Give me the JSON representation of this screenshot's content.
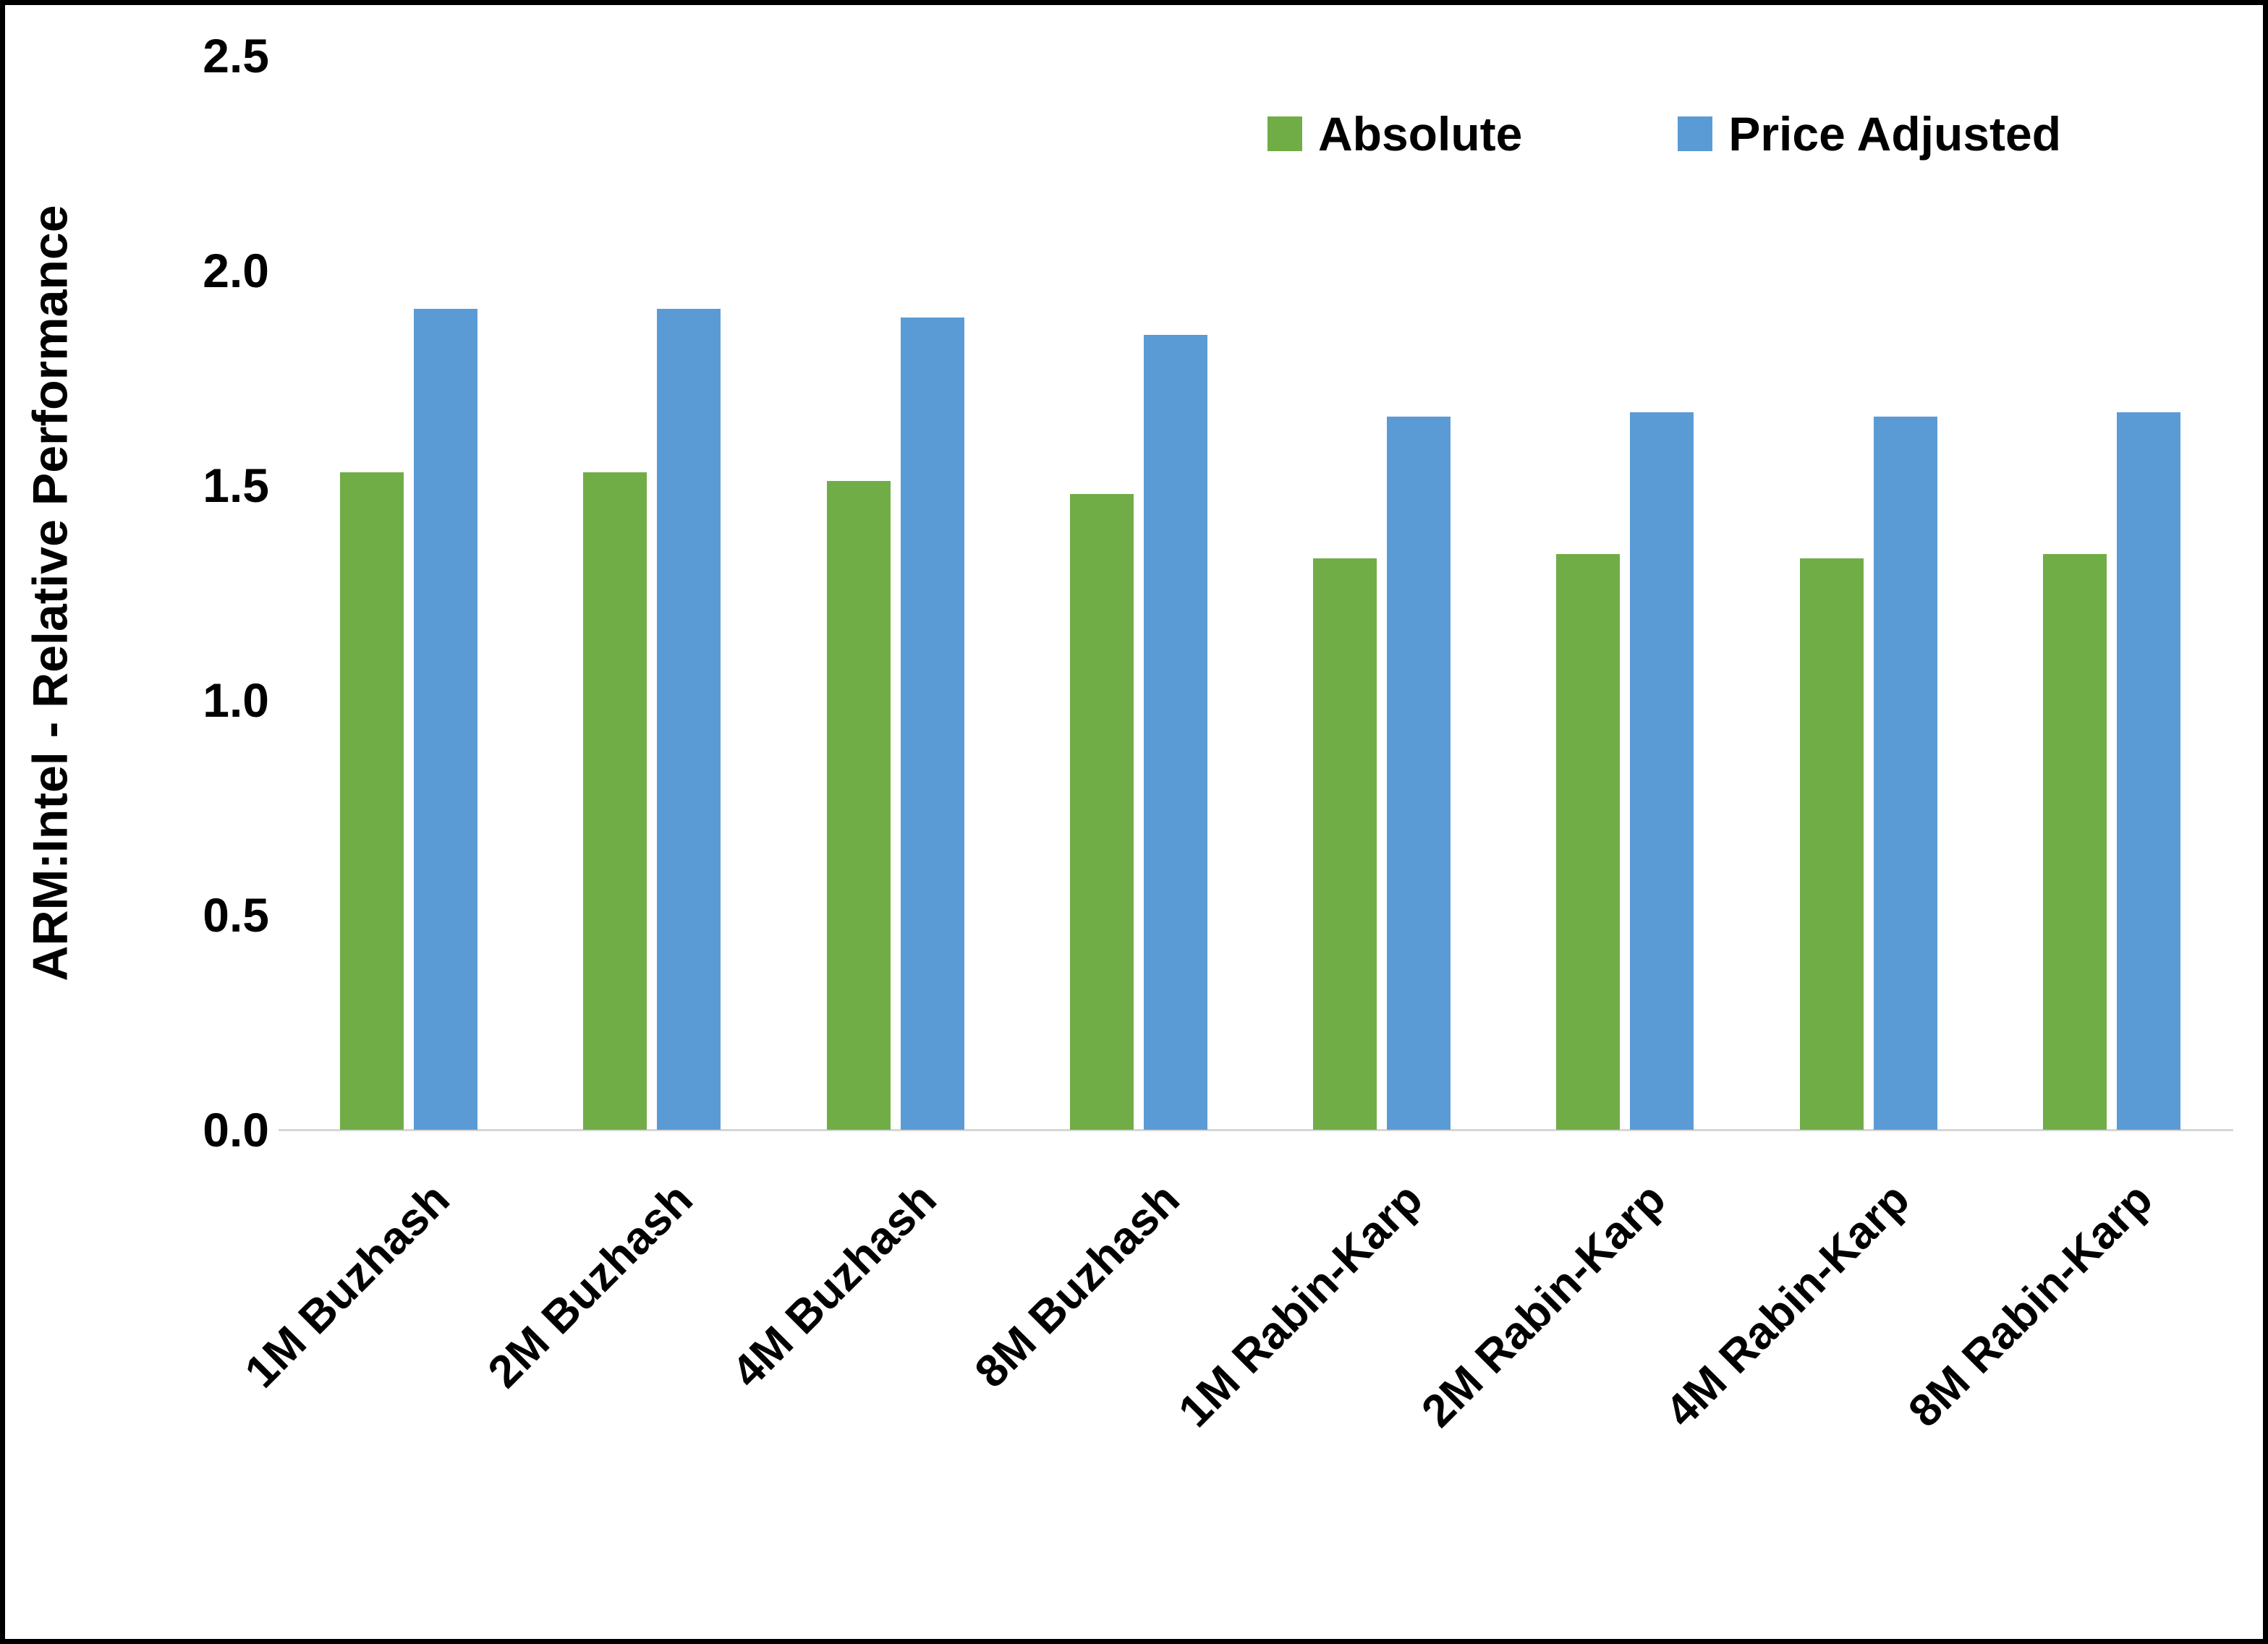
{
  "figure": {
    "background": "#ffffff",
    "border_color": "#000000",
    "axis_line_color": "#d6d6d6",
    "text_color": "#000000"
  },
  "chart_data": {
    "type": "bar",
    "title": "",
    "xlabel": "",
    "ylabel": "ARM:Intel - Relative Performance",
    "ylim": [
      0,
      2.5
    ],
    "ytick_step": 0.5,
    "yticks": [
      "0.0",
      "0.5",
      "1.0",
      "1.5",
      "2.0",
      "2.5"
    ],
    "grid": false,
    "legend_position": "top-right",
    "categories": [
      "1M Buzhash",
      "2M Buzhash",
      "4M Buzhash",
      "8M Buzhash",
      "1M Rabin-Karp",
      "2M Rabin-Karp",
      "4M Rabin-Karp",
      "8M Rabin-Karp"
    ],
    "series": [
      {
        "name": "Absolute",
        "color": "#70AD47",
        "values": [
          1.53,
          1.53,
          1.51,
          1.48,
          1.33,
          1.34,
          1.33,
          1.34
        ]
      },
      {
        "name": "Price Adjusted",
        "color": "#5B9BD5",
        "values": [
          1.91,
          1.91,
          1.89,
          1.85,
          1.66,
          1.67,
          1.66,
          1.67
        ]
      }
    ]
  }
}
